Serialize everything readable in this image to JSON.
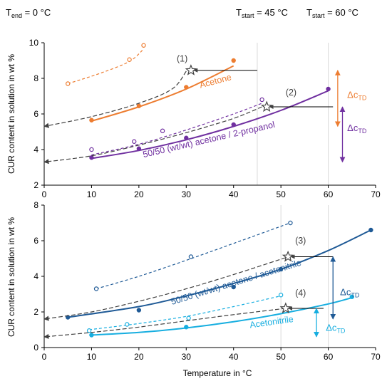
{
  "header": {
    "tend": {
      "main": "T",
      "sub": "end",
      "rest": " = 0 °C"
    },
    "tstart45": {
      "main": "T",
      "sub": "start",
      "rest": " = 45 °C"
    },
    "tstart60": {
      "main": "T",
      "sub": "start",
      "rest": " = 60 °C"
    }
  },
  "ylabel": "CUR content in solution in wt %",
  "xlabel": "Temperature in °C",
  "colors": {
    "orange": "#ED7D31",
    "lightorange": "#F4A460",
    "purple": "#7030A0",
    "lightpurple": "#B57CD6",
    "navy": "#1F5A96",
    "lightnavy": "#4F81BD",
    "cyan": "#17AEE0",
    "lightcyan": "#00B0F0",
    "gray": "#404040",
    "grid": "#D9D9D9"
  },
  "chart_data": [
    {
      "type": "scatter",
      "panel": "top",
      "xlim": [
        0,
        70
      ],
      "ylim": [
        2,
        10
      ],
      "xticks": [
        0,
        10,
        20,
        30,
        40,
        50,
        60,
        70
      ],
      "yticks": [
        2,
        4,
        6,
        8,
        10
      ],
      "series": [
        {
          "key": "acetone_solid",
          "name": "Acetone",
          "color": "orange",
          "style": "solid",
          "marker": "filled",
          "points": [
            [
              10,
              5.65
            ],
            [
              20,
              6.45
            ],
            [
              30,
              7.5
            ],
            [
              40,
              9.0
            ]
          ],
          "curve": [
            [
              10,
              5.6
            ],
            [
              20,
              6.4
            ],
            [
              30,
              7.4
            ],
            [
              40,
              8.7
            ]
          ]
        },
        {
          "key": "acetone_dashed",
          "color": "orange",
          "style": "dashed",
          "marker": "open",
          "points": [
            [
              5,
              7.7
            ],
            [
              18,
              9.05
            ],
            [
              21,
              9.85
            ]
          ],
          "curve": [
            [
              5,
              7.7
            ],
            [
              12,
              8.3
            ],
            [
              18,
              8.95
            ],
            [
              21,
              9.65
            ]
          ]
        },
        {
          "key": "acetone_prop_solid",
          "name": "50/50 (wt/wt) acetone / 2-propanol",
          "color": "purple",
          "style": "solid",
          "marker": "filled",
          "points": [
            [
              10,
              3.55
            ],
            [
              20,
              4.05
            ],
            [
              30,
              4.65
            ],
            [
              40,
              5.4
            ],
            [
              60,
              7.4
            ]
          ],
          "curve": [
            [
              10,
              3.5
            ],
            [
              20,
              3.95
            ],
            [
              30,
              4.55
            ],
            [
              40,
              5.3
            ],
            [
              50,
              6.2
            ],
            [
              60,
              7.3
            ]
          ]
        },
        {
          "key": "acetone_prop_dashed",
          "color": "purple",
          "style": "dashed",
          "marker": "open",
          "points": [
            [
              10,
              4.0
            ],
            [
              19,
              4.45
            ],
            [
              25,
              5.05
            ],
            [
              46,
              6.8
            ]
          ],
          "curve": [
            [
              10,
              3.7
            ],
            [
              20,
              4.3
            ],
            [
              30,
              5.1
            ],
            [
              40,
              6.0
            ],
            [
              46,
              6.6
            ]
          ]
        },
        {
          "key": "black1",
          "color": "gray",
          "style": "dashed",
          "marker": "none",
          "curve": [
            [
              0,
              5.3
            ],
            [
              10,
              5.85
            ],
            [
              20,
              6.6
            ],
            [
              27,
              7.4
            ],
            [
              30,
              8.4
            ]
          ]
        },
        {
          "key": "black2",
          "color": "gray",
          "style": "dashed",
          "marker": "none",
          "curve": [
            [
              0,
              3.3
            ],
            [
              10,
              3.65
            ],
            [
              20,
              4.25
            ],
            [
              30,
              4.95
            ],
            [
              40,
              5.75
            ],
            [
              46,
              6.4
            ]
          ]
        }
      ],
      "stars": [
        [
          31,
          8.45
        ],
        [
          47,
          6.4
        ]
      ],
      "arrows": [
        {
          "from": [
            45,
            8.45
          ],
          "to": [
            31.6,
            8.45
          ]
        },
        {
          "from": [
            61,
            6.4
          ],
          "to": [
            47.6,
            6.4
          ]
        }
      ],
      "labels": [
        {
          "key": "lab1",
          "text": "(1)",
          "x": 28,
          "y": 8.95,
          "color": "gray"
        },
        {
          "key": "lab2",
          "text": "(2)",
          "x": 51,
          "y": 7.05,
          "color": "gray"
        },
        {
          "key": "labAcetone",
          "text": "Acetone",
          "x": 33,
          "y": 7.45,
          "color": "orange",
          "rotate": -15
        },
        {
          "key": "labProp",
          "text": "50/50 (wt/wt) acetone / 2-propanol",
          "x": 21,
          "y": 3.55,
          "color": "purple",
          "rotate": -13
        }
      ],
      "delta": [
        {
          "x": 62,
          "y1": 8.45,
          "y2": 5.3,
          "color": "orange",
          "text": "Δc",
          "sub": "TD",
          "tx": 64,
          "ty": 6.9
        },
        {
          "x": 63,
          "y1": 6.4,
          "y2": 3.3,
          "color": "purple",
          "text": "Δc",
          "sub": "TD",
          "tx": 64,
          "ty": 5.05
        }
      ]
    },
    {
      "type": "scatter",
      "panel": "bottom",
      "xlim": [
        0,
        70
      ],
      "ylim": [
        0,
        8
      ],
      "xticks": [
        0,
        10,
        20,
        30,
        40,
        50,
        60,
        70
      ],
      "yticks": [
        0,
        2,
        4,
        6,
        8
      ],
      "series": [
        {
          "key": "acn_mix_solid",
          "name": "50/50 (wt/wt) acetone / acetonitrile",
          "color": "navy",
          "style": "solid",
          "marker": "filled",
          "points": [
            [
              5,
              1.7
            ],
            [
              20,
              2.1
            ],
            [
              40,
              3.4
            ],
            [
              50,
              4.4
            ],
            [
              69,
              6.6
            ]
          ],
          "curve": [
            [
              5,
              1.7
            ],
            [
              20,
              2.3
            ],
            [
              30,
              2.9
            ],
            [
              40,
              3.6
            ],
            [
              50,
              4.4
            ],
            [
              60,
              5.45
            ],
            [
              69,
              6.6
            ]
          ]
        },
        {
          "key": "acn_mix_dashed",
          "color": "navy",
          "style": "dashed",
          "marker": "open",
          "points": [
            [
              11,
              3.3
            ],
            [
              31,
              5.1
            ],
            [
              52,
              7.0
            ]
          ],
          "curve": [
            [
              11,
              3.3
            ],
            [
              20,
              4.0
            ],
            [
              30,
              4.9
            ],
            [
              40,
              5.85
            ],
            [
              52,
              7.0
            ]
          ]
        },
        {
          "key": "acn_solid",
          "name": "Acetonitrile",
          "color": "cyan",
          "style": "solid",
          "marker": "filled",
          "points": [
            [
              10,
              0.7
            ],
            [
              30,
              1.15
            ],
            [
              65,
              2.85
            ]
          ],
          "curve": [
            [
              10,
              0.7
            ],
            [
              20,
              0.85
            ],
            [
              30,
              1.1
            ],
            [
              40,
              1.45
            ],
            [
              50,
              1.9
            ],
            [
              60,
              2.45
            ],
            [
              65,
              2.8
            ]
          ]
        },
        {
          "key": "acn_dashed",
          "color": "cyan",
          "style": "dashed",
          "marker": "open",
          "points": [
            [
              9.5,
              0.95
            ],
            [
              17.5,
              1.3
            ],
            [
              30.5,
              1.65
            ],
            [
              50,
              2.95
            ]
          ],
          "curve": [
            [
              9.5,
              1.0
            ],
            [
              20,
              1.35
            ],
            [
              30,
              1.75
            ],
            [
              40,
              2.3
            ],
            [
              50,
              2.9
            ]
          ]
        },
        {
          "key": "black3",
          "color": "gray",
          "style": "dashed",
          "marker": "none",
          "curve": [
            [
              0,
              1.6
            ],
            [
              10,
              2.0
            ],
            [
              20,
              2.6
            ],
            [
              30,
              3.3
            ],
            [
              40,
              4.1
            ],
            [
              51,
              5.05
            ]
          ]
        },
        {
          "key": "black4",
          "color": "gray",
          "style": "dashed",
          "marker": "none",
          "curve": [
            [
              0,
              0.6
            ],
            [
              10,
              0.85
            ],
            [
              20,
              1.15
            ],
            [
              30,
              1.5
            ],
            [
              40,
              1.85
            ],
            [
              51,
              2.2
            ]
          ]
        }
      ],
      "stars": [
        [
          51.5,
          5.1
        ],
        [
          51,
          2.2
        ]
      ],
      "arrows": [
        {
          "from": [
            61,
            5.1
          ],
          "to": [
            52.1,
            5.1
          ]
        },
        {
          "from": [
            59,
            2.2
          ],
          "to": [
            51.6,
            2.2
          ]
        }
      ],
      "labels": [
        {
          "key": "lab3",
          "text": "(3)",
          "x": 53,
          "y": 5.85,
          "color": "gray"
        },
        {
          "key": "lab4",
          "text": "(4)",
          "x": 53,
          "y": 2.9,
          "color": "gray"
        },
        {
          "key": "labAcnMix",
          "text": "50/50 (wt/wt) acetone / acetonitrile",
          "x": 27,
          "y": 2.4,
          "color": "navy",
          "rotate": -17
        },
        {
          "key": "labAcn",
          "text": "Acetonitrile",
          "x": 43.5,
          "y": 1.1,
          "color": "cyan",
          "rotate": -8
        }
      ],
      "delta": [
        {
          "x": 61,
          "y1": 5.1,
          "y2": 1.6,
          "color": "navy",
          "text": "Δc",
          "sub": "TD",
          "tx": 62.5,
          "ty": 2.95
        },
        {
          "x": 57.5,
          "y1": 2.2,
          "y2": 0.6,
          "color": "cyan",
          "text": "Δc",
          "sub": "TD",
          "tx": 59.5,
          "ty": 0.95
        }
      ]
    }
  ]
}
